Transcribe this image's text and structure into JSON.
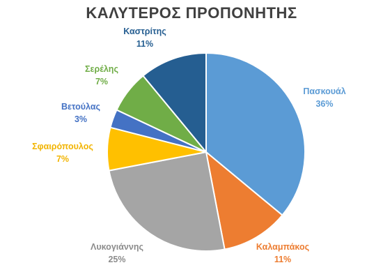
{
  "chart_data": {
    "type": "pie",
    "title": "ΚΑΛΥΤΕΡΟΣ ΠΡΟΠΟΝΗΤΗΣ",
    "slices": [
      {
        "label": "Πασκουάλ",
        "value": 36,
        "value_text": "36%",
        "color": "#5B9BD5"
      },
      {
        "label": "Καλαμπάκος",
        "value": 11,
        "value_text": "11%",
        "color": "#ED7D31"
      },
      {
        "label": "Λυκογιάννης",
        "value": 25,
        "value_text": "25%",
        "color": "#A5A5A5"
      },
      {
        "label": "Σφαιρόπουλος",
        "value": 7,
        "value_text": "7%",
        "color": "#FFC000"
      },
      {
        "label": "Βετούλας",
        "value": 3,
        "value_text": "3%",
        "color": "#4472C4"
      },
      {
        "label": "Σερέλης",
        "value": 7,
        "value_text": "7%",
        "color": "#70AD47"
      },
      {
        "label": "Καστρίτης",
        "value": 11,
        "value_text": "11%",
        "color": "#255E91"
      }
    ],
    "start": "12 o'clock",
    "direction": "clockwise",
    "legend": "none"
  }
}
